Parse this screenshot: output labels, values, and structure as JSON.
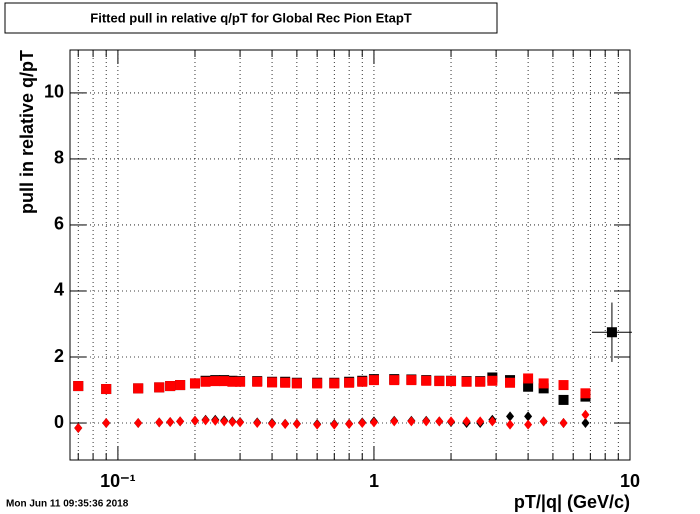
{
  "chart_data": {
    "type": "scatter",
    "title": "Fitted pull in relative q/pT for Global Rec Pion EtapT",
    "x_label": "pT/|q| (GeV/c)",
    "y_label": "pull in relative q/pT",
    "timestamp": "Mon Jun 11 09:35:36 2018",
    "x_log": true,
    "grid": true,
    "xlim": [
      0.065,
      10
    ],
    "ylim": [
      -1.12,
      11.3
    ],
    "xticks": [
      {
        "value": 0.1,
        "label": "10⁻¹"
      },
      1,
      10
    ],
    "xminorticks": [
      0.07,
      0.08,
      0.09,
      0.2,
      0.3,
      0.4,
      0.5,
      0.6,
      0.7,
      0.8,
      0.9,
      2,
      3,
      4,
      5,
      6,
      7,
      8,
      9
    ],
    "yticks": [
      0,
      2,
      4,
      6,
      8,
      10
    ],
    "x": [
      0.07,
      0.09,
      0.12,
      0.145,
      0.16,
      0.175,
      0.2,
      0.22,
      0.24,
      0.26,
      0.28,
      0.3,
      0.35,
      0.4,
      0.45,
      0.5,
      0.6,
      0.7,
      0.8,
      0.9,
      1.0,
      1.2,
      1.4,
      1.6,
      1.8,
      2.0,
      2.3,
      2.6,
      2.9,
      3.4,
      4.0,
      4.6,
      5.5,
      6.7,
      8.5
    ],
    "series": [
      {
        "marker": "square",
        "color": "#000000",
        "values": [
          1.12,
          1.03,
          1.05,
          1.08,
          1.12,
          1.15,
          1.2,
          1.28,
          1.3,
          1.3,
          1.28,
          1.27,
          1.27,
          1.25,
          1.25,
          1.22,
          1.22,
          1.22,
          1.25,
          1.28,
          1.33,
          1.33,
          1.32,
          1.3,
          1.28,
          1.28,
          1.27,
          1.27,
          1.38,
          1.3,
          1.1,
          1.05,
          0.7,
          0.8,
          2.75
        ],
        "yerr": [
          null,
          null,
          null,
          null,
          null,
          null,
          null,
          null,
          null,
          null,
          null,
          null,
          null,
          null,
          null,
          null,
          null,
          null,
          null,
          null,
          null,
          null,
          null,
          null,
          null,
          null,
          null,
          null,
          null,
          null,
          null,
          null,
          null,
          null,
          0.9
        ]
      },
      {
        "marker": "diamond",
        "color": "#000000",
        "values": [
          -0.15,
          0,
          0,
          0.02,
          0.03,
          0.05,
          0.07,
          0.1,
          0.1,
          0.08,
          0.05,
          0.03,
          0.02,
          0,
          -0.02,
          -0.02,
          -0.03,
          -0.03,
          -0.02,
          0.02,
          0.05,
          0.07,
          0.07,
          0.07,
          0.05,
          0.03,
          0,
          0,
          0.1,
          0.2,
          0.2,
          0.05,
          0,
          0,
          null
        ]
      },
      {
        "marker": "square",
        "color": "#ff0000",
        "values": [
          1.12,
          1.03,
          1.05,
          1.08,
          1.12,
          1.15,
          1.2,
          1.25,
          1.27,
          1.27,
          1.25,
          1.25,
          1.25,
          1.23,
          1.22,
          1.2,
          1.2,
          1.2,
          1.22,
          1.25,
          1.3,
          1.3,
          1.3,
          1.28,
          1.27,
          1.27,
          1.25,
          1.25,
          1.28,
          1.22,
          1.35,
          1.2,
          1.15,
          0.9,
          null
        ]
      },
      {
        "marker": "diamond",
        "color": "#ff0000",
        "values": [
          -0.15,
          0,
          0,
          0.02,
          0.03,
          0.05,
          0.07,
          0.08,
          0.07,
          0.05,
          0.03,
          0.02,
          0,
          -0.02,
          -0.03,
          -0.03,
          -0.05,
          -0.05,
          -0.03,
          0,
          0.02,
          0.05,
          0.05,
          0.05,
          0.05,
          0.05,
          0.05,
          0.05,
          0.05,
          -0.05,
          -0.05,
          0.05,
          0,
          0.25,
          null
        ]
      }
    ]
  }
}
